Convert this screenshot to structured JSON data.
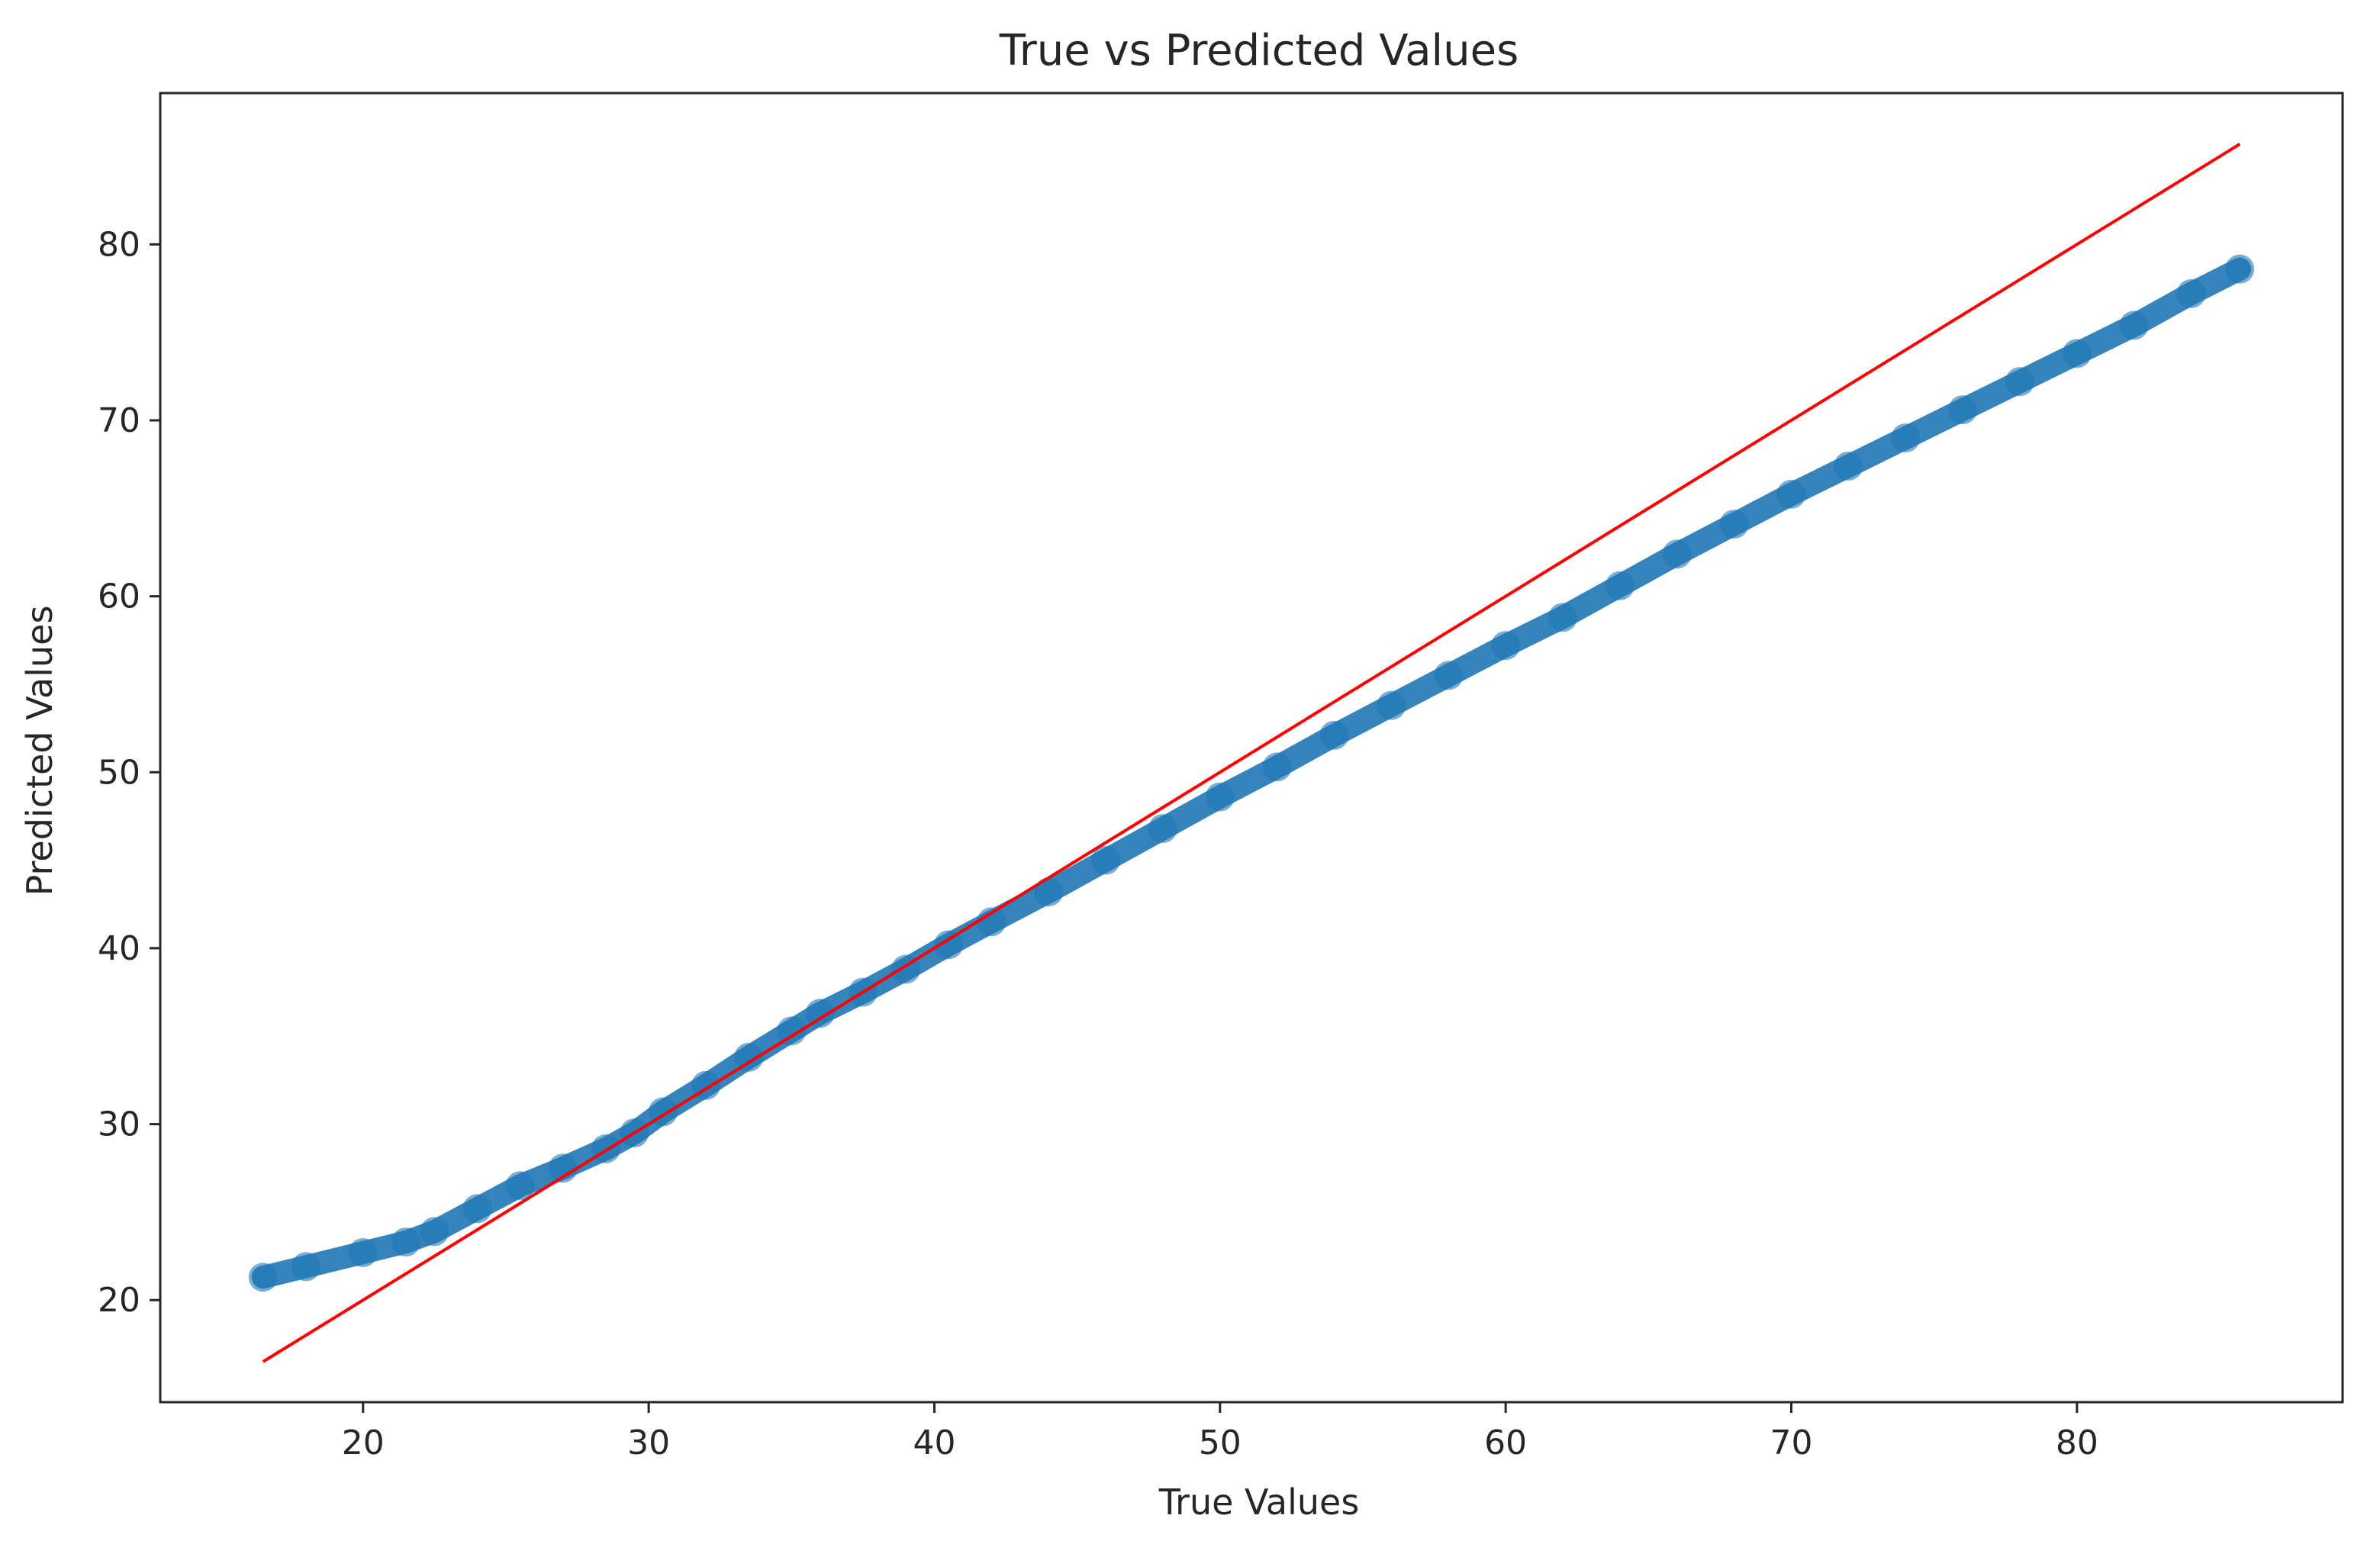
{
  "chart_data": {
    "type": "scatter",
    "title": "True vs Predicted Values",
    "xlabel": "True Values",
    "ylabel": "Predicted Values",
    "xlim": [
      12.9,
      89.3
    ],
    "ylim": [
      14.2,
      88.6
    ],
    "xticks": [
      20,
      30,
      40,
      50,
      60,
      70,
      80
    ],
    "yticks": [
      20,
      30,
      40,
      50,
      60,
      70,
      80
    ],
    "grid": false,
    "legend": "none",
    "series": [
      {
        "kind": "scatter",
        "color": "#1f77b4",
        "points": [
          [
            16.5,
            21.3
          ],
          [
            18,
            21.9
          ],
          [
            20,
            22.7
          ],
          [
            21.5,
            23.3
          ],
          [
            22.5,
            23.9
          ],
          [
            24,
            25.2
          ],
          [
            25.5,
            26.5
          ],
          [
            27,
            27.5
          ],
          [
            28.5,
            28.6
          ],
          [
            29.5,
            29.5
          ],
          [
            30.5,
            30.7
          ],
          [
            32,
            32.2
          ],
          [
            33.5,
            33.8
          ],
          [
            35,
            35.3
          ],
          [
            36,
            36.3
          ],
          [
            37.5,
            37.5
          ],
          [
            39,
            38.8
          ],
          [
            40.5,
            40.2
          ],
          [
            42,
            41.5
          ],
          [
            44,
            43.2
          ],
          [
            46,
            45
          ],
          [
            48,
            46.8
          ],
          [
            50,
            48.6
          ],
          [
            52,
            50.3
          ],
          [
            54,
            52.1
          ],
          [
            56,
            53.8
          ],
          [
            58,
            55.5
          ],
          [
            60,
            57.2
          ],
          [
            62,
            58.8
          ],
          [
            64,
            60.6
          ],
          [
            66,
            62.4
          ],
          [
            68,
            64.1
          ],
          [
            70,
            65.8
          ],
          [
            72,
            67.4
          ],
          [
            74,
            69
          ],
          [
            76,
            70.6
          ],
          [
            78,
            72.2
          ],
          [
            80,
            73.8
          ],
          [
            82,
            75.4
          ],
          [
            84,
            77.2
          ],
          [
            85.7,
            78.6
          ]
        ]
      },
      {
        "kind": "line",
        "color": "#ff0000",
        "points": [
          [
            16.5,
            16.5
          ],
          [
            85.7,
            85.7
          ]
        ]
      }
    ]
  }
}
